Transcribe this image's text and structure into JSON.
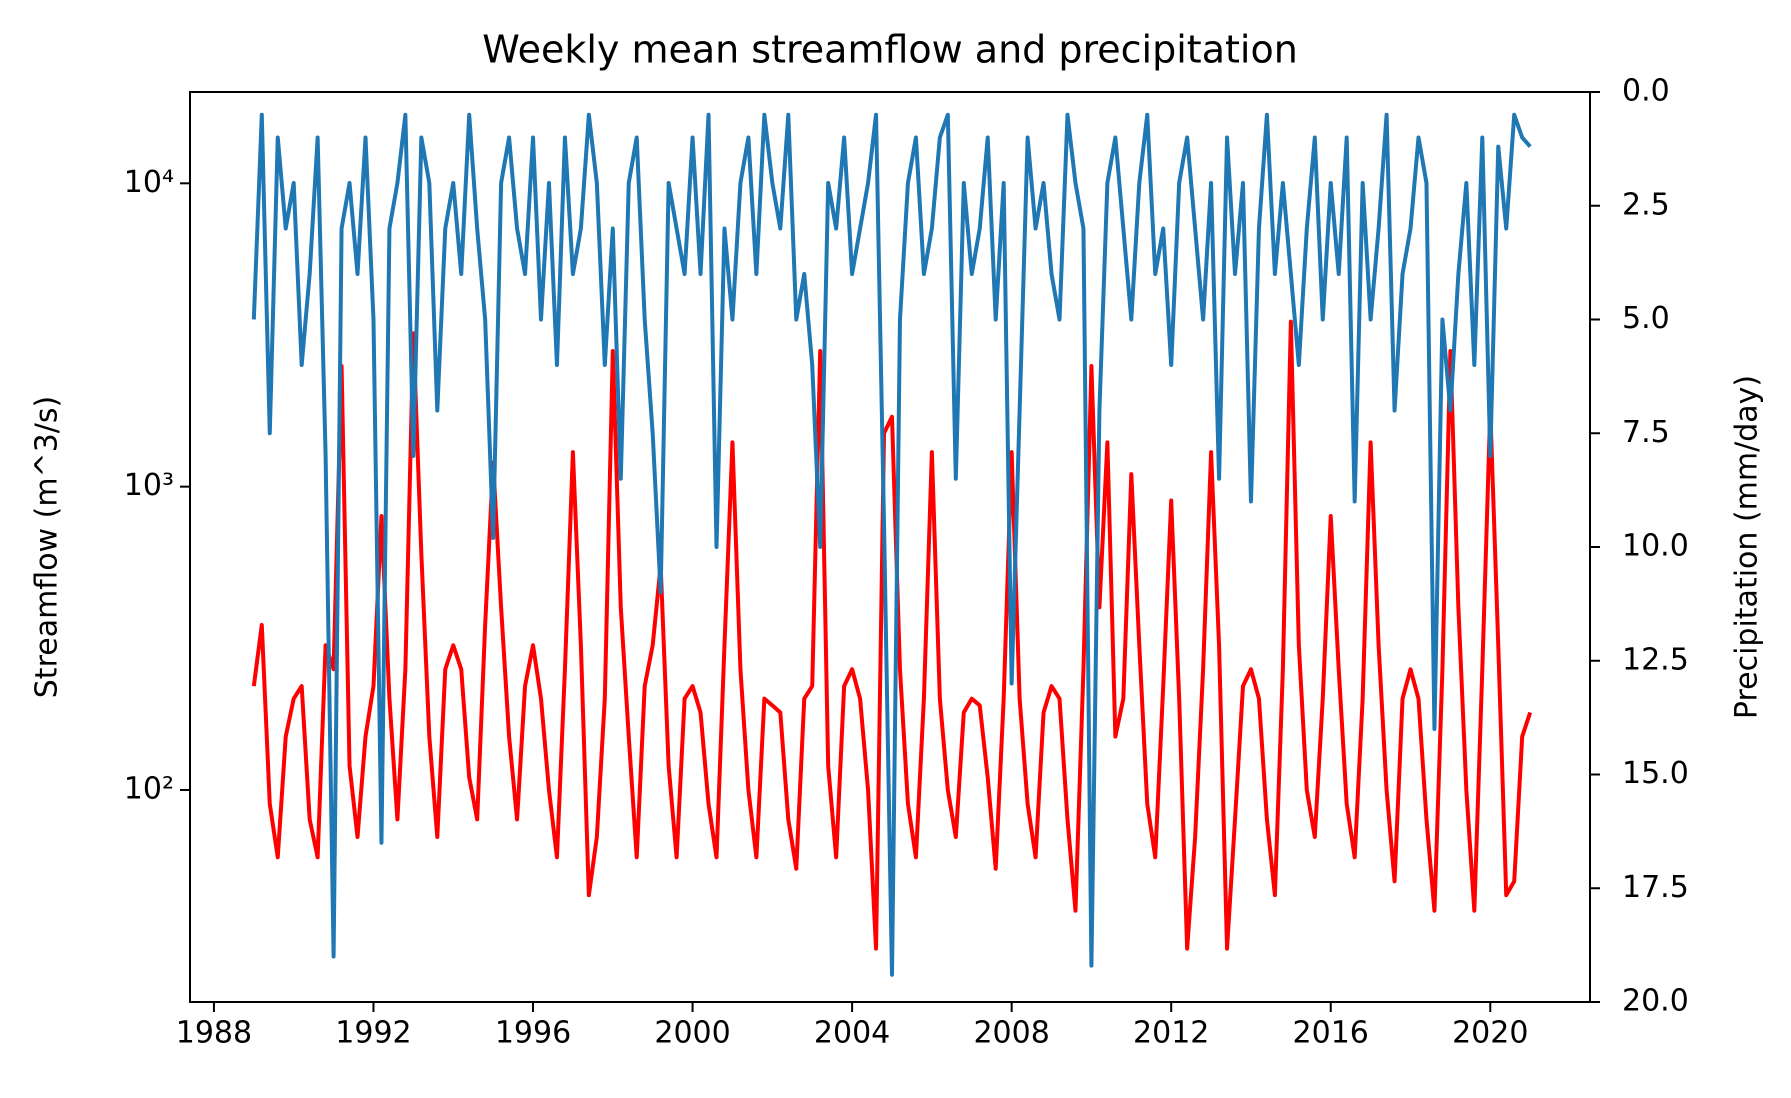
{
  "chart_data": {
    "type": "line",
    "title": "Weekly mean streamflow and precipitation",
    "ylabel": "Streamflow (m^3/s)",
    "y2label": "Precipitation (mm/day)",
    "xlim": [
      1987.4,
      2022.5
    ],
    "xticks": [
      1988,
      1992,
      1996,
      2000,
      2004,
      2008,
      2012,
      2016,
      2020
    ],
    "ylim": [
      20,
      20000
    ],
    "yscale": "log",
    "yticks": [
      {
        "value": 100,
        "label": "10²"
      },
      {
        "value": 1000,
        "label": "10³"
      },
      {
        "value": 10000,
        "label": "10⁴"
      }
    ],
    "y2lim": [
      0,
      20
    ],
    "y2_inverted": true,
    "y2ticks": [
      {
        "value": 0,
        "label": "0.0"
      },
      2.5,
      {
        "value": 5,
        "label": "5.0"
      },
      7.5,
      {
        "value": 10,
        "label": "10.0"
      },
      12.5,
      {
        "value": 15,
        "label": "15.0"
      },
      17.5,
      {
        "value": 20,
        "label": "20.0"
      }
    ],
    "grid": false,
    "x": [
      1989.0,
      1989.2,
      1989.4,
      1989.6,
      1989.8,
      1990.0,
      1990.2,
      1990.4,
      1990.6,
      1990.8,
      1991.0,
      1991.2,
      1991.4,
      1991.6,
      1991.8,
      1992.0,
      1992.2,
      1992.4,
      1992.6,
      1992.8,
      1993.0,
      1993.2,
      1993.4,
      1993.6,
      1993.8,
      1994.0,
      1994.2,
      1994.4,
      1994.6,
      1994.8,
      1995.0,
      1995.2,
      1995.4,
      1995.6,
      1995.8,
      1996.0,
      1996.2,
      1996.4,
      1996.6,
      1996.8,
      1997.0,
      1997.2,
      1997.4,
      1997.6,
      1997.8,
      1998.0,
      1998.2,
      1998.4,
      1998.6,
      1998.8,
      1999.0,
      1999.2,
      1999.4,
      1999.6,
      1999.8,
      2000.0,
      2000.2,
      2000.4,
      2000.6,
      2000.8,
      2001.0,
      2001.2,
      2001.4,
      2001.6,
      2001.8,
      2002.0,
      2002.2,
      2002.4,
      2002.6,
      2002.8,
      2003.0,
      2003.2,
      2003.4,
      2003.6,
      2003.8,
      2004.0,
      2004.2,
      2004.4,
      2004.6,
      2004.8,
      2005.0,
      2005.2,
      2005.4,
      2005.6,
      2005.8,
      2006.0,
      2006.2,
      2006.4,
      2006.6,
      2006.8,
      2007.0,
      2007.2,
      2007.4,
      2007.6,
      2007.8,
      2008.0,
      2008.2,
      2008.4,
      2008.6,
      2008.8,
      2009.0,
      2009.2,
      2009.4,
      2009.6,
      2009.8,
      2010.0,
      2010.2,
      2010.4,
      2010.6,
      2010.8,
      2011.0,
      2011.2,
      2011.4,
      2011.6,
      2011.8,
      2012.0,
      2012.2,
      2012.4,
      2012.6,
      2012.8,
      2013.0,
      2013.2,
      2013.4,
      2013.6,
      2013.8,
      2014.0,
      2014.2,
      2014.4,
      2014.6,
      2014.8,
      2015.0,
      2015.2,
      2015.4,
      2015.6,
      2015.8,
      2016.0,
      2016.2,
      2016.4,
      2016.6,
      2016.8,
      2017.0,
      2017.2,
      2017.4,
      2017.6,
      2017.8,
      2018.0,
      2018.2,
      2018.4,
      2018.6,
      2018.8,
      2019.0,
      2019.2,
      2019.4,
      2019.6,
      2019.8,
      2020.0,
      2020.2,
      2020.4,
      2020.6,
      2020.8,
      2021.0
    ],
    "series": [
      {
        "color": "#ff0000",
        "axis": "y",
        "values": [
          220,
          350,
          90,
          60,
          150,
          200,
          220,
          80,
          60,
          300,
          250,
          2500,
          120,
          70,
          150,
          220,
          800,
          200,
          80,
          250,
          3200,
          600,
          150,
          70,
          250,
          300,
          250,
          110,
          80,
          350,
          1200,
          400,
          150,
          80,
          220,
          300,
          200,
          100,
          60,
          250,
          1300,
          300,
          45,
          70,
          200,
          2800,
          400,
          150,
          60,
          220,
          300,
          550,
          120,
          60,
          200,
          220,
          180,
          90,
          60,
          300,
          1400,
          250,
          100,
          60,
          200,
          190,
          180,
          80,
          55,
          200,
          220,
          2800,
          120,
          60,
          220,
          250,
          200,
          100,
          30,
          1500,
          1700,
          250,
          90,
          60,
          200,
          1300,
          200,
          100,
          70,
          180,
          200,
          190,
          110,
          55,
          200,
          1300,
          200,
          90,
          60,
          180,
          220,
          200,
          80,
          40,
          250,
          2500,
          400,
          1400,
          150,
          200,
          1100,
          300,
          90,
          60,
          220,
          900,
          200,
          30,
          70,
          250,
          1300,
          300,
          30,
          80,
          220,
          250,
          200,
          80,
          45,
          250,
          3500,
          300,
          100,
          70,
          200,
          800,
          250,
          90,
          60,
          200,
          1400,
          300,
          100,
          50,
          200,
          250,
          200,
          80,
          40,
          250,
          2800,
          400,
          100,
          40,
          250,
          1800,
          300,
          45,
          50,
          150,
          180
        ]
      },
      {
        "color": "#1f77b4",
        "axis": "y2",
        "values": [
          5,
          0.5,
          7.5,
          1,
          3,
          2,
          6,
          4,
          1,
          8,
          19,
          3,
          2,
          4,
          1,
          5,
          16.5,
          3,
          2,
          0.5,
          8,
          1,
          2,
          7,
          3,
          2,
          4,
          0.5,
          3,
          5,
          9.8,
          2,
          1,
          3,
          4,
          1,
          5,
          2,
          6,
          1,
          4,
          3,
          0.5,
          2,
          6,
          3,
          8.5,
          2,
          1,
          5,
          7.5,
          11,
          2,
          3,
          4,
          1,
          4,
          0.5,
          10,
          3,
          5,
          2,
          1,
          4,
          0.5,
          2,
          3,
          0.5,
          5,
          4,
          6,
          10,
          2,
          3,
          1,
          4,
          3,
          2,
          0.5,
          9.5,
          19.4,
          5,
          2,
          1,
          4,
          3,
          1,
          0.5,
          8.5,
          2,
          4,
          3,
          1,
          5,
          2,
          13,
          7,
          1,
          3,
          2,
          4,
          5,
          0.5,
          2,
          3,
          19.2,
          7,
          2,
          1,
          3,
          5,
          2,
          0.5,
          4,
          3,
          6,
          2,
          1,
          3,
          5,
          2,
          8.5,
          1,
          4,
          2,
          9,
          3,
          0.5,
          4,
          2,
          4,
          6,
          3,
          1,
          5,
          2,
          4,
          1,
          9,
          2,
          5,
          3,
          0.5,
          7,
          4,
          3,
          1,
          2,
          14,
          5,
          7,
          4,
          2,
          6,
          1,
          8,
          1.2,
          3,
          0.5,
          1,
          1.2
        ]
      }
    ]
  }
}
